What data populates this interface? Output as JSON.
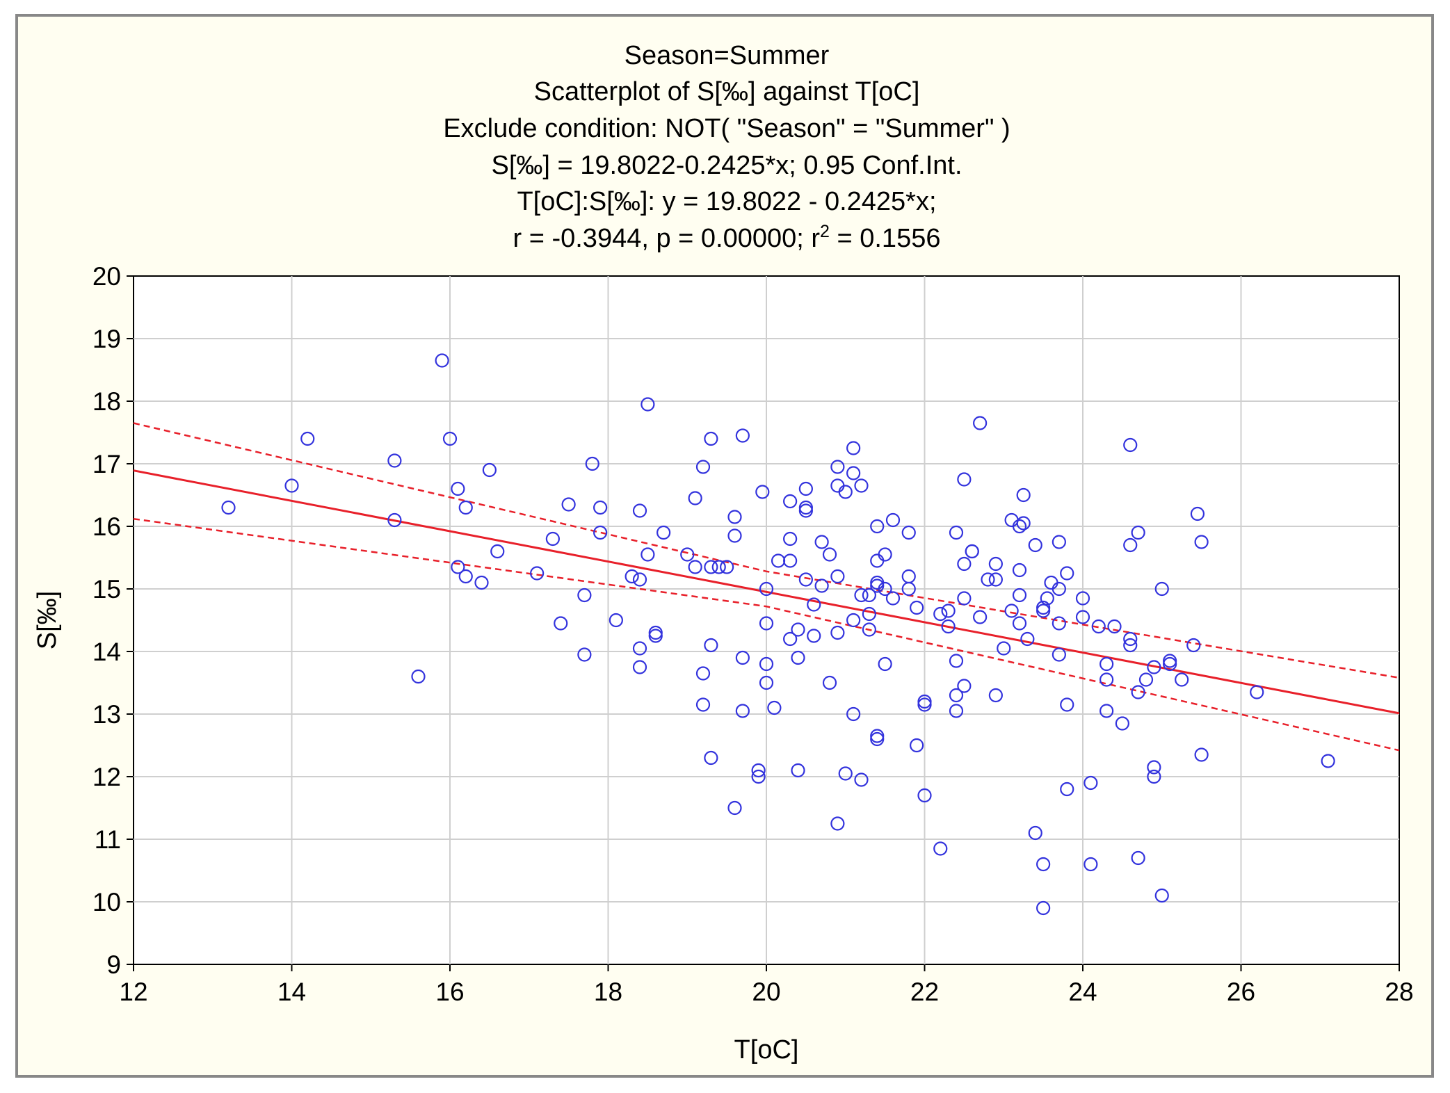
{
  "chart_data": {
    "type": "scatter",
    "title_lines": [
      "Season=Summer",
      "Scatterplot of S[‰] against T[oC]",
      "Exclude condition: NOT( \"Season\" = \"Summer\" )",
      "S[‰] = 19.8022-0.2425*x; 0.95 Conf.Int.",
      "T[oC]:S[‰]:   y = 19.8022 - 0.2425*x;"
    ],
    "stats_line": {
      "before_sup": "r = -0.3944, p = 0.00000; r",
      "sup": "2",
      "after_sup": " = 0.1556"
    },
    "xlabel": "T[oC]",
    "ylabel": "S[‰]",
    "xlim": [
      12,
      28
    ],
    "ylim": [
      9,
      20
    ],
    "xticks": [
      "12",
      "14",
      "16",
      "18",
      "20",
      "22",
      "24",
      "26",
      "28"
    ],
    "yticks": [
      "9",
      "10",
      "11",
      "12",
      "13",
      "14",
      "15",
      "16",
      "17",
      "18",
      "19",
      "20"
    ],
    "grid": true,
    "point_color": "#3333dd",
    "line_color": "#e8202a",
    "fit": {
      "intercept": 19.8022,
      "slope": -0.2425
    },
    "conf_band": {
      "level": 0.95,
      "upper": [
        [
          12,
          17.65
        ],
        [
          20,
          15.28
        ],
        [
          28,
          13.58
        ]
      ],
      "lower": [
        [
          12,
          16.12
        ],
        [
          20,
          14.72
        ],
        [
          28,
          12.42
        ]
      ]
    },
    "series": [
      {
        "name": "Summer",
        "points": [
          [
            13.2,
            16.3
          ],
          [
            14.0,
            16.65
          ],
          [
            14.2,
            17.4
          ],
          [
            15.3,
            17.05
          ],
          [
            15.3,
            16.1
          ],
          [
            15.6,
            13.6
          ],
          [
            15.9,
            18.65
          ],
          [
            16.0,
            17.4
          ],
          [
            16.1,
            16.6
          ],
          [
            16.1,
            15.35
          ],
          [
            16.2,
            16.3
          ],
          [
            16.2,
            15.2
          ],
          [
            16.4,
            15.1
          ],
          [
            16.5,
            16.9
          ],
          [
            16.6,
            15.6
          ],
          [
            17.1,
            15.25
          ],
          [
            17.3,
            15.8
          ],
          [
            17.4,
            14.45
          ],
          [
            17.5,
            16.35
          ],
          [
            17.7,
            14.9
          ],
          [
            17.7,
            13.95
          ],
          [
            17.8,
            17.0
          ],
          [
            17.9,
            16.3
          ],
          [
            17.9,
            15.9
          ],
          [
            18.1,
            14.5
          ],
          [
            18.3,
            15.2
          ],
          [
            18.4,
            16.25
          ],
          [
            18.4,
            15.15
          ],
          [
            18.4,
            14.05
          ],
          [
            18.4,
            13.75
          ],
          [
            18.5,
            17.95
          ],
          [
            18.5,
            15.55
          ],
          [
            18.6,
            14.3
          ],
          [
            18.6,
            14.25
          ],
          [
            18.7,
            15.9
          ],
          [
            19.0,
            15.55
          ],
          [
            19.1,
            16.45
          ],
          [
            19.1,
            15.35
          ],
          [
            19.2,
            16.95
          ],
          [
            19.2,
            13.65
          ],
          [
            19.2,
            13.15
          ],
          [
            19.3,
            17.4
          ],
          [
            19.3,
            15.35
          ],
          [
            19.3,
            14.1
          ],
          [
            19.3,
            12.3
          ],
          [
            19.4,
            15.35
          ],
          [
            19.5,
            15.35
          ],
          [
            19.6,
            16.15
          ],
          [
            19.6,
            15.85
          ],
          [
            19.6,
            11.5
          ],
          [
            19.7,
            17.45
          ],
          [
            19.7,
            13.9
          ],
          [
            19.7,
            13.05
          ],
          [
            19.9,
            12.1
          ],
          [
            19.9,
            12.0
          ],
          [
            19.95,
            16.55
          ],
          [
            20.0,
            15.0
          ],
          [
            20.0,
            14.45
          ],
          [
            20.0,
            13.8
          ],
          [
            20.0,
            13.5
          ],
          [
            20.1,
            13.1
          ],
          [
            20.15,
            15.45
          ],
          [
            20.3,
            16.4
          ],
          [
            20.3,
            15.8
          ],
          [
            20.3,
            15.45
          ],
          [
            20.3,
            14.2
          ],
          [
            20.4,
            14.35
          ],
          [
            20.4,
            13.9
          ],
          [
            20.4,
            12.1
          ],
          [
            20.5,
            16.6
          ],
          [
            20.5,
            16.3
          ],
          [
            20.5,
            16.25
          ],
          [
            20.5,
            15.15
          ],
          [
            20.6,
            14.75
          ],
          [
            20.6,
            14.25
          ],
          [
            20.7,
            15.75
          ],
          [
            20.7,
            15.05
          ],
          [
            20.8,
            15.55
          ],
          [
            20.8,
            13.5
          ],
          [
            20.9,
            16.95
          ],
          [
            20.9,
            16.65
          ],
          [
            20.9,
            15.2
          ],
          [
            20.9,
            14.3
          ],
          [
            20.9,
            11.25
          ],
          [
            21.0,
            16.55
          ],
          [
            21.0,
            12.05
          ],
          [
            21.1,
            17.25
          ],
          [
            21.1,
            16.85
          ],
          [
            21.1,
            14.5
          ],
          [
            21.1,
            13.0
          ],
          [
            21.2,
            16.65
          ],
          [
            21.2,
            14.9
          ],
          [
            21.2,
            11.95
          ],
          [
            21.3,
            14.9
          ],
          [
            21.3,
            14.6
          ],
          [
            21.3,
            14.35
          ],
          [
            21.4,
            16.0
          ],
          [
            21.4,
            15.45
          ],
          [
            21.4,
            15.1
          ],
          [
            21.4,
            15.05
          ],
          [
            21.4,
            12.65
          ],
          [
            21.4,
            12.6
          ],
          [
            21.5,
            15.55
          ],
          [
            21.5,
            15.0
          ],
          [
            21.5,
            13.8
          ],
          [
            21.6,
            16.1
          ],
          [
            21.6,
            14.85
          ],
          [
            21.8,
            15.9
          ],
          [
            21.8,
            15.2
          ],
          [
            21.8,
            15.0
          ],
          [
            21.9,
            14.7
          ],
          [
            21.9,
            12.5
          ],
          [
            22.0,
            13.2
          ],
          [
            22.0,
            13.15
          ],
          [
            22.0,
            11.7
          ],
          [
            22.2,
            14.6
          ],
          [
            22.2,
            10.85
          ],
          [
            22.3,
            14.65
          ],
          [
            22.3,
            14.4
          ],
          [
            22.4,
            15.9
          ],
          [
            22.4,
            13.85
          ],
          [
            22.4,
            13.3
          ],
          [
            22.4,
            13.05
          ],
          [
            22.5,
            16.75
          ],
          [
            22.5,
            15.4
          ],
          [
            22.5,
            14.85
          ],
          [
            22.5,
            13.45
          ],
          [
            22.6,
            15.6
          ],
          [
            22.6,
            15.6
          ],
          [
            22.7,
            17.65
          ],
          [
            22.7,
            14.55
          ],
          [
            22.8,
            15.15
          ],
          [
            22.9,
            15.4
          ],
          [
            22.9,
            15.15
          ],
          [
            22.9,
            13.3
          ],
          [
            23.0,
            14.05
          ],
          [
            23.1,
            16.1
          ],
          [
            23.1,
            14.65
          ],
          [
            23.2,
            16.0
          ],
          [
            23.2,
            15.3
          ],
          [
            23.2,
            14.9
          ],
          [
            23.2,
            14.45
          ],
          [
            23.25,
            16.5
          ],
          [
            23.25,
            16.05
          ],
          [
            23.3,
            14.2
          ],
          [
            23.4,
            15.7
          ],
          [
            23.4,
            11.1
          ],
          [
            23.5,
            14.7
          ],
          [
            23.5,
            14.65
          ],
          [
            23.5,
            10.6
          ],
          [
            23.5,
            9.9
          ],
          [
            23.55,
            14.85
          ],
          [
            23.6,
            15.1
          ],
          [
            23.7,
            15.75
          ],
          [
            23.7,
            15.0
          ],
          [
            23.7,
            14.45
          ],
          [
            23.7,
            13.95
          ],
          [
            23.8,
            15.25
          ],
          [
            23.8,
            13.15
          ],
          [
            23.8,
            11.8
          ],
          [
            24.0,
            14.85
          ],
          [
            24.0,
            14.55
          ],
          [
            24.1,
            11.9
          ],
          [
            24.1,
            10.6
          ],
          [
            24.2,
            14.4
          ],
          [
            24.3,
            13.8
          ],
          [
            24.3,
            13.55
          ],
          [
            24.3,
            13.05
          ],
          [
            24.4,
            14.4
          ],
          [
            24.5,
            12.85
          ],
          [
            24.6,
            17.3
          ],
          [
            24.6,
            15.7
          ],
          [
            24.6,
            14.2
          ],
          [
            24.6,
            14.1
          ],
          [
            24.7,
            15.9
          ],
          [
            24.7,
            13.35
          ],
          [
            24.7,
            10.7
          ],
          [
            24.8,
            13.55
          ],
          [
            24.9,
            13.75
          ],
          [
            24.9,
            12.15
          ],
          [
            24.9,
            12.0
          ],
          [
            25.0,
            15.0
          ],
          [
            25.0,
            10.1
          ],
          [
            25.1,
            13.85
          ],
          [
            25.1,
            13.8
          ],
          [
            25.25,
            13.55
          ],
          [
            25.4,
            14.1
          ],
          [
            25.45,
            16.2
          ],
          [
            25.5,
            15.75
          ],
          [
            25.5,
            12.35
          ],
          [
            26.2,
            13.35
          ],
          [
            27.1,
            12.25
          ]
        ]
      }
    ]
  }
}
